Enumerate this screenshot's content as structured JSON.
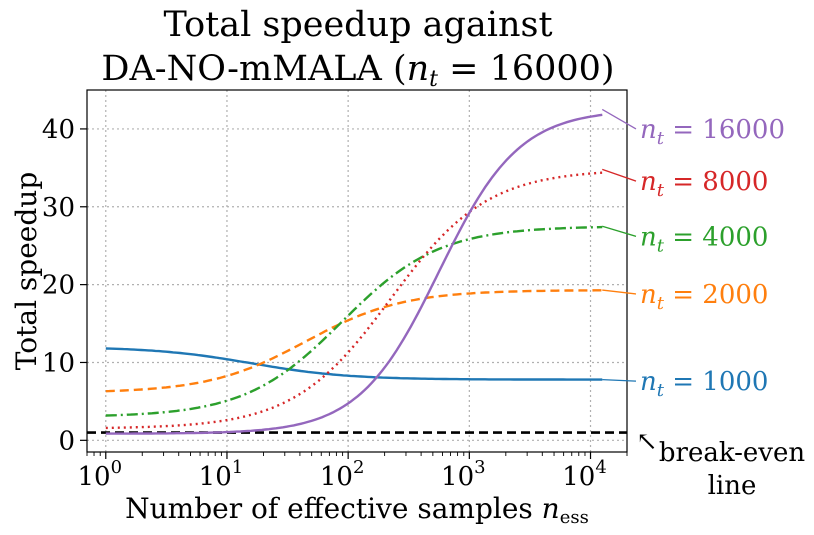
{
  "chart_data": {
    "type": "line",
    "title_line1": "Total speedup against",
    "title_line2_prefix": "DA-NO-mMALA (",
    "title_line2_var": "n",
    "title_line2_sub": "t",
    "title_line2_suffix": " = 16000)",
    "xlabel_text": "Number of effective samples ",
    "xlabel_var": "n",
    "xlabel_sub": "ess",
    "ylabel": "Total speedup",
    "xscale": "log",
    "xlim": [
      0.7,
      20000
    ],
    "ylim": [
      -1.5,
      45
    ],
    "grid": true,
    "xticks": [
      {
        "value": 1,
        "base": "10",
        "exp": "0"
      },
      {
        "value": 10,
        "base": "10",
        "exp": "1"
      },
      {
        "value": 100,
        "base": "10",
        "exp": "2"
      },
      {
        "value": 1000,
        "base": "10",
        "exp": "3"
      },
      {
        "value": 10000,
        "base": "10",
        "exp": "4"
      }
    ],
    "yticks": [
      {
        "value": 0,
        "label": "0"
      },
      {
        "value": 10,
        "label": "10"
      },
      {
        "value": 20,
        "label": "20"
      },
      {
        "value": 30,
        "label": "30"
      },
      {
        "value": 40,
        "label": "40"
      }
    ],
    "x_range": [
      1,
      12500
    ],
    "series": [
      {
        "name": "n_t = 1000",
        "label_var": "n",
        "label_sub": "t",
        "label_value": " = 1000",
        "color": "#1f77b4",
        "style": "solid",
        "start": 12.0,
        "end": 7.8,
        "mid_log10": 1.2,
        "width_log10": 0.4,
        "label_y": 7.6
      },
      {
        "name": "n_t = 2000",
        "label_var": "n",
        "label_sub": "t",
        "label_value": " = 2000",
        "color": "#ff7f0e",
        "style": "dashed",
        "start": 6.1,
        "end": 19.3,
        "mid_log10": 1.65,
        "width_log10": 0.4,
        "label_y": 18.8
      },
      {
        "name": "n_t = 4000",
        "label_var": "n",
        "label_sub": "t",
        "label_value": " = 4000",
        "color": "#2ca02c",
        "style": "dashdot",
        "start": 3.0,
        "end": 27.5,
        "mid_log10": 1.95,
        "width_log10": 0.4,
        "label_y": 26.2
      },
      {
        "name": "n_t = 8000",
        "label_var": "n",
        "label_sub": "t",
        "label_value": " = 8000",
        "color": "#d62728",
        "style": "dotted",
        "start": 1.5,
        "end": 34.8,
        "mid_log10": 2.35,
        "width_log10": 0.4,
        "label_y": 33.3
      },
      {
        "name": "n_t = 16000",
        "label_var": "n",
        "label_sub": "t",
        "label_value": " = 16000",
        "color": "#9467bd",
        "style": "solid",
        "start": 0.85,
        "end": 42.5,
        "mid_log10": 2.75,
        "width_log10": 0.33,
        "label_y": 40.0
      }
    ],
    "reference_line": {
      "y": 1,
      "color": "#000000",
      "style": "dashed"
    },
    "annotation": {
      "line1": "break-even",
      "line2": "line",
      "arrow": "↖"
    }
  }
}
